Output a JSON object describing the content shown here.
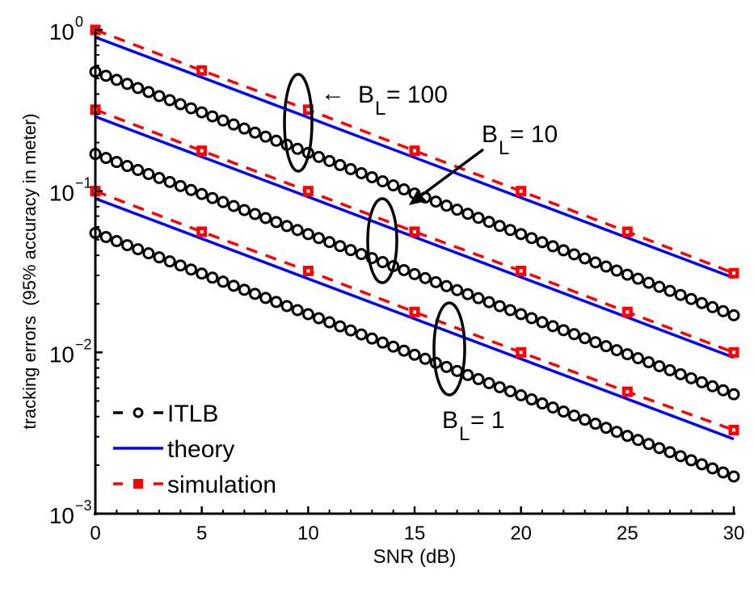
{
  "chart_data": {
    "type": "line",
    "title": "",
    "xlabel": "SNR (dB)",
    "ylabel": "tracking errors  (95% accuracy in meter)",
    "xlim": [
      0,
      30
    ],
    "ylim": [
      0.001,
      1
    ],
    "yscale": "log",
    "xticks": [
      0,
      5,
      10,
      15,
      20,
      25,
      30
    ],
    "xtick_labels": [
      "0",
      "5",
      "10",
      "15",
      "20",
      "25",
      "30"
    ],
    "yticks": [
      1,
      0.1,
      0.01,
      0.001
    ],
    "ytick_labels": [
      {
        "base": "10",
        "exp": "0"
      },
      {
        "base": "10",
        "exp": "−1"
      },
      {
        "base": "10",
        "exp": "−2"
      },
      {
        "base": "10",
        "exp": "−3"
      }
    ],
    "grid": false,
    "legend": {
      "position": "bottom-left",
      "entries": [
        {
          "label": "ITLB",
          "style": "black dashed with circle markers"
        },
        {
          "label": "theory",
          "style": "blue solid"
        },
        {
          "label": "simulation",
          "style": "red dashed with square markers"
        }
      ]
    },
    "colors": {
      "itlb": "#000000",
      "theory": "#0000ff",
      "simulation": "#ff0000"
    },
    "groups": [
      {
        "name": "B_L = 100",
        "theory": {
          "x": [
            0,
            30
          ],
          "y": [
            0.9,
            0.029
          ]
        },
        "simulation": {
          "x": [
            0,
            5,
            10,
            15,
            20,
            25,
            30
          ],
          "y": [
            1.0,
            0.56,
            0.32,
            0.178,
            0.1,
            0.056,
            0.031
          ]
        },
        "itlb": {
          "x_start": 0,
          "x_end": 30,
          "x_step": 0.5,
          "y_start": 0.55,
          "y_end": 0.017
        }
      },
      {
        "name": "B_L = 10",
        "theory": {
          "x": [
            0,
            30
          ],
          "y": [
            0.29,
            0.0093
          ]
        },
        "simulation": {
          "x": [
            0,
            5,
            10,
            15,
            20,
            25,
            30
          ],
          "y": [
            0.32,
            0.178,
            0.1,
            0.056,
            0.032,
            0.0178,
            0.01
          ]
        },
        "itlb": {
          "x_start": 0,
          "x_end": 30,
          "x_step": 0.5,
          "y_start": 0.17,
          "y_end": 0.0055
        }
      },
      {
        "name": "B_L = 1",
        "theory": {
          "x": [
            0,
            30
          ],
          "y": [
            0.09,
            0.0029
          ]
        },
        "simulation": {
          "x": [
            0,
            5,
            10,
            15,
            20,
            25,
            30
          ],
          "y": [
            0.1,
            0.056,
            0.032,
            0.0178,
            0.01,
            0.0057,
            0.0033
          ]
        },
        "itlb": {
          "x_start": 0,
          "x_end": 30,
          "x_step": 0.5,
          "y_start": 0.055,
          "y_end": 0.0017
        }
      }
    ],
    "annotations": [
      {
        "text_main": "B",
        "text_sub": "L",
        "text_rest": " = 100",
        "arrow": "←",
        "target_group": "B_L = 100",
        "ellipse_at": {
          "x": 10,
          "y": 0.25
        }
      },
      {
        "text_main": "B",
        "text_sub": "L",
        "text_rest": " = 10",
        "arrow": "line-arrow",
        "target_group": "B_L = 10",
        "ellipse_at": {
          "x": 14.5,
          "y": 0.05
        }
      },
      {
        "text_main": "B",
        "text_sub": "L",
        "text_rest": " = 1",
        "arrow": "none",
        "target_group": "B_L = 1",
        "ellipse_at": {
          "x": 17.5,
          "y": 0.011
        }
      }
    ]
  }
}
